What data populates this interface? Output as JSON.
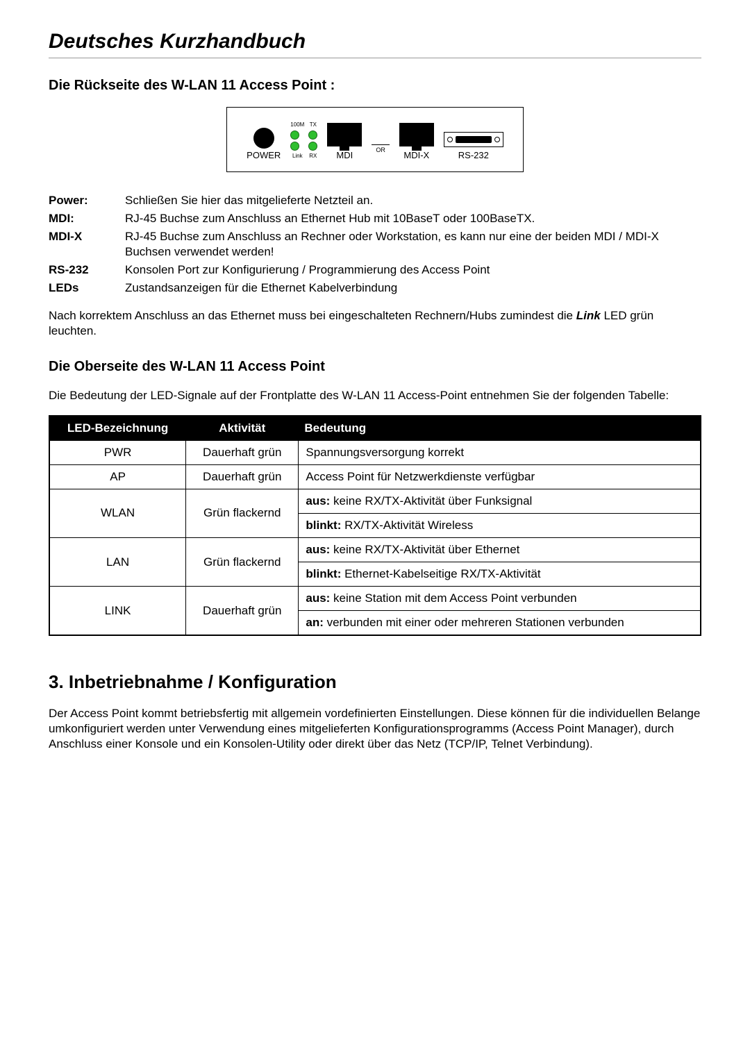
{
  "page_title": "Deutsches Kurzhandbuch",
  "back_heading": "Die Rückseite des W-LAN 11 Access Point :",
  "diagram": {
    "power_label": "POWER",
    "led_top_left": "100M",
    "led_top_right": "TX",
    "led_bot_left": "Link",
    "led_bot_right": "RX",
    "mdi_label": "MDI",
    "or_label": "OR",
    "mdix_label": "MDI-X",
    "rs232_label": "RS-232",
    "led_color": "#2fbf2f",
    "border_color": "#000000"
  },
  "definitions": {
    "power_k": "Power:",
    "power_v": "Schließen Sie hier das mitgelieferte Netzteil an.",
    "mdi_k": "MDI:",
    "mdi_v": "RJ-45 Buchse zum Anschluss an Ethernet Hub mit 10BaseT oder 100BaseTX.",
    "mdix_k": "MDI-X",
    "mdix_v": "RJ-45 Buchse zum Anschluss an Rechner oder Workstation, es kann nur eine der beiden MDI / MDI-X Buchsen verwendet werden!",
    "rs232_k": "RS-232",
    "rs232_v": "Konsolen Port zur Konfigurierung / Programmierung des Access Point",
    "leds_k": "LEDs",
    "leds_v": "Zustandsanzeigen für die Ethernet Kabelverbindung"
  },
  "note_pre": "Nach korrektem Anschluss an das Ethernet muss bei eingeschalteten Rechnern/Hubs zumindest die ",
  "note_link": "Link",
  "note_post": " LED grün leuchten.",
  "top_heading": "Die Oberseite des W-LAN 11 Access Point",
  "top_intro": "Die Bedeutung der LED-Signale auf der Frontplatte des W-LAN 11 Access-Point entnehmen Sie der folgenden Tabelle:",
  "table": {
    "columns": [
      "LED-Bezeichnung",
      "Aktivität",
      "Bedeutung"
    ],
    "header_bg": "#000000",
    "header_fg": "#ffffff",
    "rows": [
      {
        "name": "PWR",
        "activity": "Dauerhaft grün",
        "meanings": [
          "Spannungsversorgung korrekt"
        ]
      },
      {
        "name": "AP",
        "activity": "Dauerhaft grün",
        "meanings": [
          "Access Point für Netzwerkdienste verfügbar"
        ]
      },
      {
        "name": "WLAN",
        "activity": "Grün flackernd",
        "meanings": [
          {
            "b": "aus:",
            "t": " keine RX/TX-Aktivität über Funksignal"
          },
          {
            "b": "blinkt:",
            "t": " RX/TX-Aktivität Wireless"
          }
        ]
      },
      {
        "name": "LAN",
        "activity": "Grün flackernd",
        "meanings": [
          {
            "b": "aus:",
            "t": " keine RX/TX-Aktivität über Ethernet"
          },
          {
            "b": "blinkt:",
            "t": " Ethernet-Kabelseitige RX/TX-Aktivität"
          }
        ]
      },
      {
        "name": "LINK",
        "activity": "Dauerhaft grün",
        "meanings": [
          {
            "b": "aus:",
            "t": " keine Station mit dem Access Point verbunden"
          },
          {
            "b": "an:",
            "t": " verbunden mit einer oder mehreren Stationen verbunden"
          }
        ]
      }
    ]
  },
  "section3_title": "3. Inbetriebnahme / Konfiguration",
  "section3_body": "Der Access Point kommt betriebsfertig mit allgemein vordefinierten Einstellungen. Diese können für die individuellen Belange umkonfiguriert werden unter Verwendung eines mitgelieferten Konfigurationsprogramms (Access Point Manager), durch Anschluss einer Konsole und ein Konsolen-Utility oder direkt über das Netz (TCP/IP, Telnet Verbindung)."
}
